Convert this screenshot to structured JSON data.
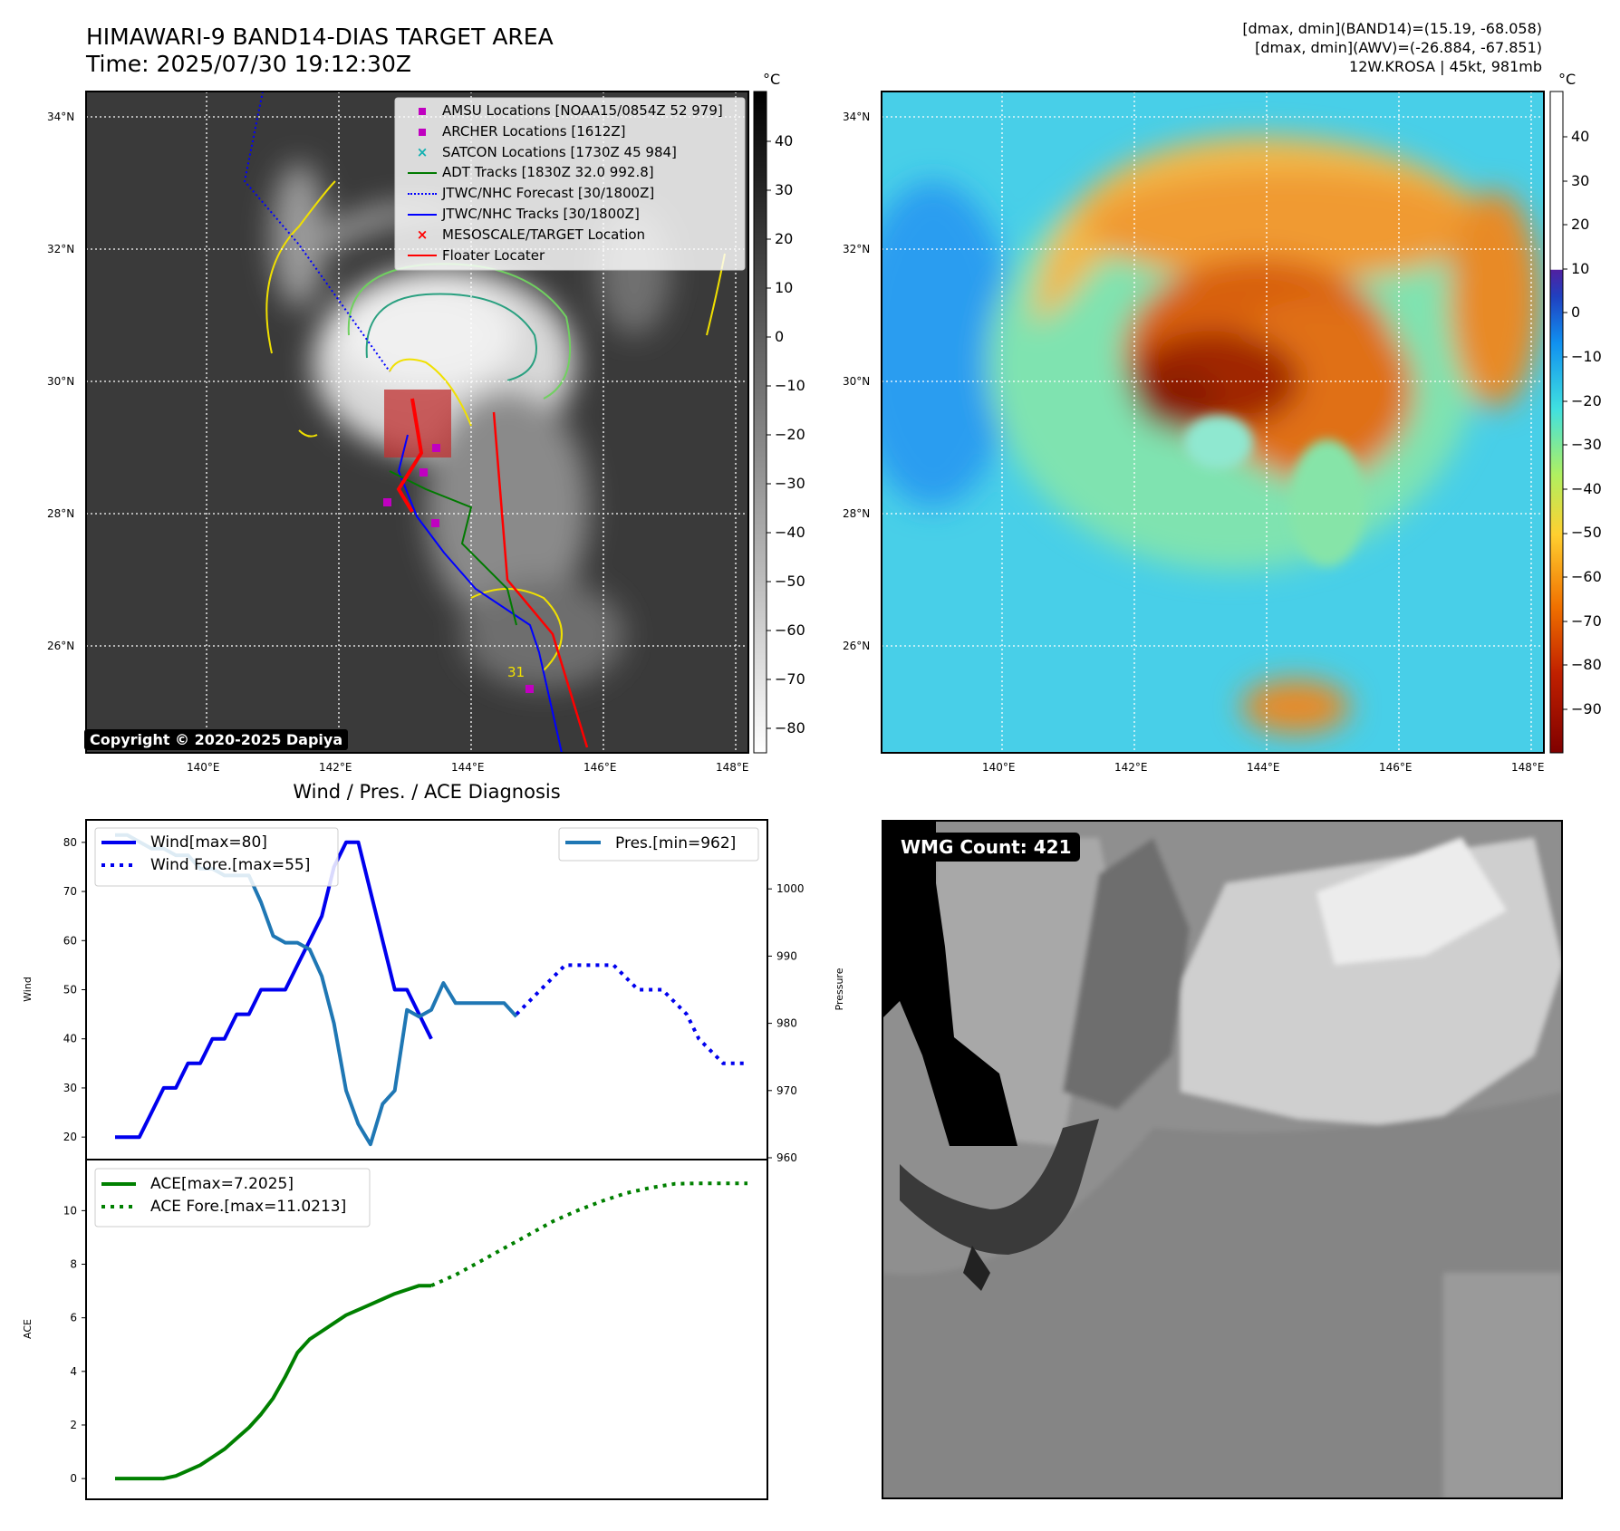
{
  "header": {
    "title_line1": "HIMAWARI-9 BAND14-DIAS TARGET AREA",
    "title_line2": "Time: 2025/07/30 19:12:30Z",
    "info_line1": "[dmax, dmin](BAND14)=(15.19, -68.058)",
    "info_line2": "[dmax, dmin](AWV)=(-26.884, -67.851)",
    "info_line3": "12W.KROSA | 45kt, 981mb"
  },
  "maps": {
    "lat_labels": [
      "34°N",
      "32°N",
      "30°N",
      "28°N",
      "26°N"
    ],
    "lon_labels": [
      "140°E",
      "142°E",
      "144°E",
      "146°E",
      "148°E"
    ],
    "contour_label": "31",
    "copyright": "Copyright © 2020-2025 Dapiya",
    "legend": [
      {
        "label": "AMSU Locations [NOAA15/0854Z 52 979]",
        "marker": "square",
        "color": "#c000c0"
      },
      {
        "label": "ARCHER Locations [1612Z]",
        "marker": "square",
        "color": "#c000c0"
      },
      {
        "label": "SATCON Locations [1730Z 45 984]",
        "marker": "x",
        "color": "#10b0b0"
      },
      {
        "label": "ADT Tracks [1830Z 32.0 992.8]",
        "marker": "solid",
        "color": "#007a00"
      },
      {
        "label": "JTWC/NHC Forecast [30/1800Z]",
        "marker": "dotted",
        "color": "#0000ff"
      },
      {
        "label": "JTWC/NHC Tracks [30/1800Z]",
        "marker": "dotline",
        "color": "#0000ff"
      },
      {
        "label": "MESOSCALE/TARGET Location",
        "marker": "x",
        "color": "#ff0000"
      },
      {
        "label": "Floater Locater",
        "marker": "solid",
        "color": "#ff0000"
      }
    ],
    "gray_colorbar": {
      "unit": "°C",
      "ticks": [
        "40",
        "30",
        "20",
        "10",
        "0",
        "−10",
        "−20",
        "−30",
        "−40",
        "−50",
        "−60",
        "−70",
        "−80"
      ]
    },
    "color_colorbar": {
      "unit": "°C",
      "ticks": [
        "40",
        "30",
        "20",
        "10",
        "0",
        "−10",
        "−20",
        "−30",
        "−40",
        "−50",
        "−60",
        "−70",
        "−80",
        "−90"
      ]
    }
  },
  "wmg": {
    "label": "WMG Count: 421"
  },
  "chart_data": [
    {
      "type": "line",
      "title": "Wind / Pres. / ACE Diagnosis",
      "ylabel": "Wind",
      "ylabel_right": "Pressure",
      "ylim": [
        18,
        82
      ],
      "ylim_right": [
        960,
        1010
      ],
      "yticks": [
        20,
        30,
        40,
        50,
        60,
        70,
        80
      ],
      "yticks_right": [
        960,
        970,
        980,
        990,
        1000
      ],
      "legend_left": [
        "Wind[max=80]",
        "Wind Fore.[max=55]"
      ],
      "legend_right": [
        "Pres.[min=962]"
      ],
      "series": [
        {
          "name": "Wind[max=80]",
          "color": "#0000ee",
          "style": "solid",
          "axis": "left",
          "x": [
            0,
            1,
            2,
            3,
            4,
            5,
            6,
            7,
            8,
            9,
            10,
            11,
            12,
            13,
            14,
            15,
            16,
            17,
            18,
            19,
            20,
            21,
            22,
            23,
            24,
            25,
            26
          ],
          "values": [
            20,
            20,
            20,
            25,
            30,
            30,
            35,
            35,
            40,
            40,
            45,
            45,
            50,
            50,
            50,
            55,
            60,
            65,
            75,
            80,
            80,
            70,
            60,
            50,
            50,
            45,
            40
          ]
        },
        {
          "name": "Wind Fore.[max=55]",
          "color": "#0000ee",
          "style": "dotted",
          "axis": "left",
          "x": [
            33,
            35,
            37,
            39,
            41,
            43,
            45,
            47,
            48,
            50,
            52
          ],
          "values": [
            45,
            50,
            55,
            55,
            55,
            50,
            50,
            45,
            40,
            35,
            35
          ]
        },
        {
          "name": "Pres.[min=962]",
          "color": "#1f77b4",
          "style": "solid",
          "axis": "right",
          "x": [
            0,
            1,
            2,
            3,
            4,
            5,
            6,
            7,
            8,
            9,
            10,
            11,
            12,
            13,
            14,
            15,
            16,
            17,
            18,
            19,
            20,
            21,
            22,
            23,
            24,
            25,
            26,
            27,
            28,
            29,
            30,
            31,
            32,
            33
          ],
          "values": [
            1008,
            1008,
            1007,
            1006,
            1006,
            1005,
            1005,
            1003,
            1003,
            1002,
            1002,
            1002,
            998,
            993,
            992,
            992,
            991,
            987,
            980,
            970,
            965,
            962,
            968,
            970,
            982,
            981,
            982,
            986,
            983,
            983,
            983,
            983,
            983,
            981
          ]
        }
      ]
    },
    {
      "type": "line",
      "ylabel": "ACE",
      "ylim": [
        -0.3,
        11.5
      ],
      "yticks": [
        0,
        2,
        4,
        6,
        8,
        10
      ],
      "legend": [
        "ACE[max=7.2025]",
        "ACE Fore.[max=11.0213]"
      ],
      "series": [
        {
          "name": "ACE[max=7.2025]",
          "color": "#008000",
          "style": "solid",
          "x": [
            0,
            1,
            2,
            3,
            4,
            5,
            6,
            7,
            8,
            9,
            10,
            11,
            12,
            13,
            14,
            15,
            16,
            17,
            18,
            19,
            20,
            21,
            22,
            23,
            24,
            25,
            26
          ],
          "values": [
            0,
            0,
            0,
            0,
            0,
            0.1,
            0.3,
            0.5,
            0.8,
            1.1,
            1.5,
            1.9,
            2.4,
            3.0,
            3.8,
            4.7,
            5.2,
            5.5,
            5.8,
            6.1,
            6.3,
            6.5,
            6.7,
            6.9,
            7.05,
            7.2,
            7.2
          ]
        },
        {
          "name": "ACE Fore.[max=11.0213]",
          "color": "#008000",
          "style": "dotted",
          "x": [
            26,
            28,
            30,
            32,
            34,
            36,
            38,
            40,
            42,
            44,
            46,
            48,
            50,
            52
          ],
          "values": [
            7.2,
            7.6,
            8.1,
            8.6,
            9.1,
            9.6,
            10.0,
            10.35,
            10.65,
            10.85,
            11.0,
            11.02,
            11.02,
            11.02
          ]
        }
      ]
    }
  ]
}
